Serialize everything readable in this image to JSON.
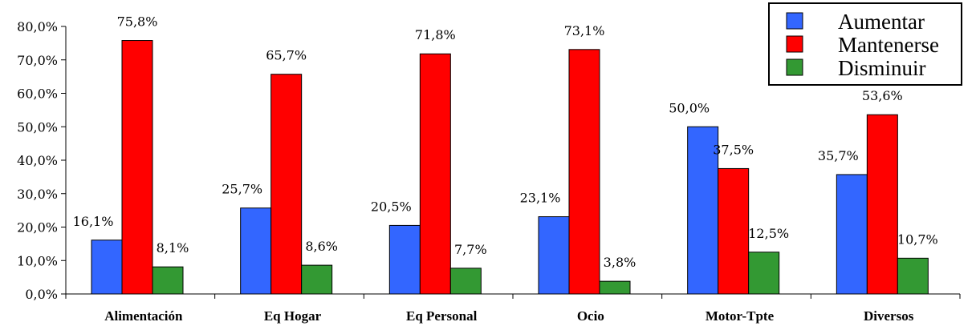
{
  "chart_data": {
    "type": "bar",
    "title": "",
    "xlabel": "",
    "ylabel": "",
    "ylim": [
      0,
      80
    ],
    "yticks": [
      "0,0%",
      "10,0%",
      "20,0%",
      "30,0%",
      "40,0%",
      "50,0%",
      "60,0%",
      "70,0%",
      "80,0%"
    ],
    "categories": [
      "Alimentación",
      "Eq Hogar",
      "Eq Personal",
      "Ocio",
      "Motor-Tpte",
      "Diversos"
    ],
    "series": [
      {
        "name": "Aumentar",
        "color": "#3366ff",
        "values": [
          16.1,
          25.7,
          20.5,
          23.1,
          50.0,
          35.7
        ],
        "labels": [
          "16,1%",
          "25,7%",
          "20,5%",
          "23,1%",
          "50,0%",
          "35,7%"
        ]
      },
      {
        "name": "Mantenerse",
        "color": "#ff0000",
        "values": [
          75.8,
          65.7,
          71.8,
          73.1,
          37.5,
          53.6
        ],
        "labels": [
          "75,8%",
          "65,7%",
          "71,8%",
          "73,1%",
          "37,5%",
          "53,6%"
        ]
      },
      {
        "name": "Disminuir",
        "color": "#339933",
        "values": [
          8.1,
          8.6,
          7.7,
          3.8,
          12.5,
          10.7
        ],
        "labels": [
          "8,1%",
          "8,6%",
          "7,7%",
          "3,8%",
          "12,5%",
          "10,7%"
        ]
      }
    ],
    "grid": false,
    "legend": "top-right"
  }
}
